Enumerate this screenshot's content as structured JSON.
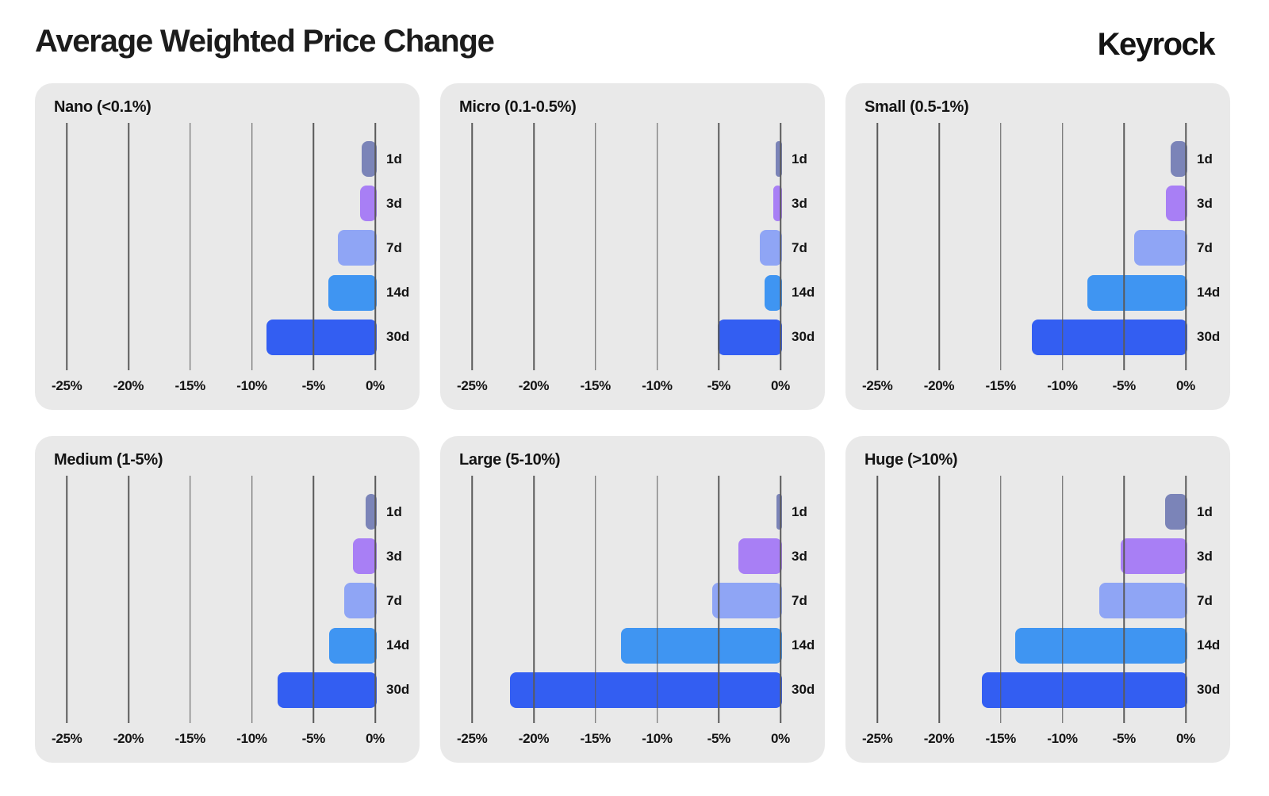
{
  "header": {
    "title": "Average Weighted Price Change",
    "brand": "Keyrock"
  },
  "colors": {
    "series": {
      "1d": "#7b84b8",
      "3d": "#a87ff5",
      "7d": "#8fa5f5",
      "14d": "#3f95f2",
      "30d": "#335ef2"
    },
    "panel_bg": "#e9e9e9",
    "gridline": "#5a5a5a",
    "text": "#141414",
    "page_bg": "#ffffff"
  },
  "chart_data": [
    {
      "id": "nano",
      "type": "bar",
      "orientation": "horizontal",
      "title": "Nano (<0.1%)",
      "categories": [
        "1d",
        "3d",
        "7d",
        "14d",
        "30d"
      ],
      "values": [
        -1.1,
        -1.2,
        -3.0,
        -3.8,
        -8.8
      ],
      "xlim": [
        -25,
        0
      ],
      "xticks": [
        -25,
        -20,
        -15,
        -10,
        -5,
        0
      ],
      "xtick_labels": [
        "-25%",
        "-20%",
        "-15%",
        "-10%",
        "-5%",
        "0%"
      ],
      "grid": true,
      "legend": "none"
    },
    {
      "id": "micro",
      "type": "bar",
      "orientation": "horizontal",
      "title": "Micro (0.1-0.5%)",
      "categories": [
        "1d",
        "3d",
        "7d",
        "14d",
        "30d"
      ],
      "values": [
        -0.4,
        -0.6,
        -1.7,
        -1.3,
        -5.1
      ],
      "xlim": [
        -25,
        0
      ],
      "xticks": [
        -25,
        -20,
        -15,
        -10,
        -5,
        0
      ],
      "xtick_labels": [
        "-25%",
        "-20%",
        "-15%",
        "-10%",
        "-5%",
        "0%"
      ],
      "grid": true,
      "legend": "none"
    },
    {
      "id": "small",
      "type": "bar",
      "orientation": "horizontal",
      "title": "Small (0.5-1%)",
      "categories": [
        "1d",
        "3d",
        "7d",
        "14d",
        "30d"
      ],
      "values": [
        -1.2,
        -1.6,
        -4.2,
        -8.0,
        -12.5
      ],
      "xlim": [
        -25,
        0
      ],
      "xticks": [
        -25,
        -20,
        -15,
        -10,
        -5,
        0
      ],
      "xtick_labels": [
        "-25%",
        "-20%",
        "-15%",
        "-10%",
        "-5%",
        "0%"
      ],
      "grid": true,
      "legend": "none"
    },
    {
      "id": "medium",
      "type": "bar",
      "orientation": "horizontal",
      "title": "Medium (1-5%)",
      "categories": [
        "1d",
        "3d",
        "7d",
        "14d",
        "30d"
      ],
      "values": [
        -0.8,
        -1.8,
        -2.5,
        -3.7,
        -7.9
      ],
      "xlim": [
        -25,
        0
      ],
      "xticks": [
        -25,
        -20,
        -15,
        -10,
        -5,
        0
      ],
      "xtick_labels": [
        "-25%",
        "-20%",
        "-15%",
        "-10%",
        "-5%",
        "0%"
      ],
      "grid": true,
      "legend": "none"
    },
    {
      "id": "large",
      "type": "bar",
      "orientation": "horizontal",
      "title": "Large (5-10%)",
      "categories": [
        "1d",
        "3d",
        "7d",
        "14d",
        "30d"
      ],
      "values": [
        -0.3,
        -3.4,
        -5.5,
        -12.9,
        -21.9
      ],
      "xlim": [
        -25,
        0
      ],
      "xticks": [
        -25,
        -20,
        -15,
        -10,
        -5,
        0
      ],
      "xtick_labels": [
        "-25%",
        "-20%",
        "-15%",
        "-10%",
        "-5%",
        "0%"
      ],
      "grid": true,
      "legend": "none"
    },
    {
      "id": "huge",
      "type": "bar",
      "orientation": "horizontal",
      "title": "Huge (>10%)",
      "categories": [
        "1d",
        "3d",
        "7d",
        "14d",
        "30d"
      ],
      "values": [
        -1.7,
        -5.3,
        -7.0,
        -13.8,
        -16.5
      ],
      "xlim": [
        -25,
        0
      ],
      "xticks": [
        -25,
        -20,
        -15,
        -10,
        -5,
        0
      ],
      "xtick_labels": [
        "-25%",
        "-20%",
        "-15%",
        "-10%",
        "-5%",
        "0%"
      ],
      "grid": true,
      "legend": "none"
    }
  ]
}
